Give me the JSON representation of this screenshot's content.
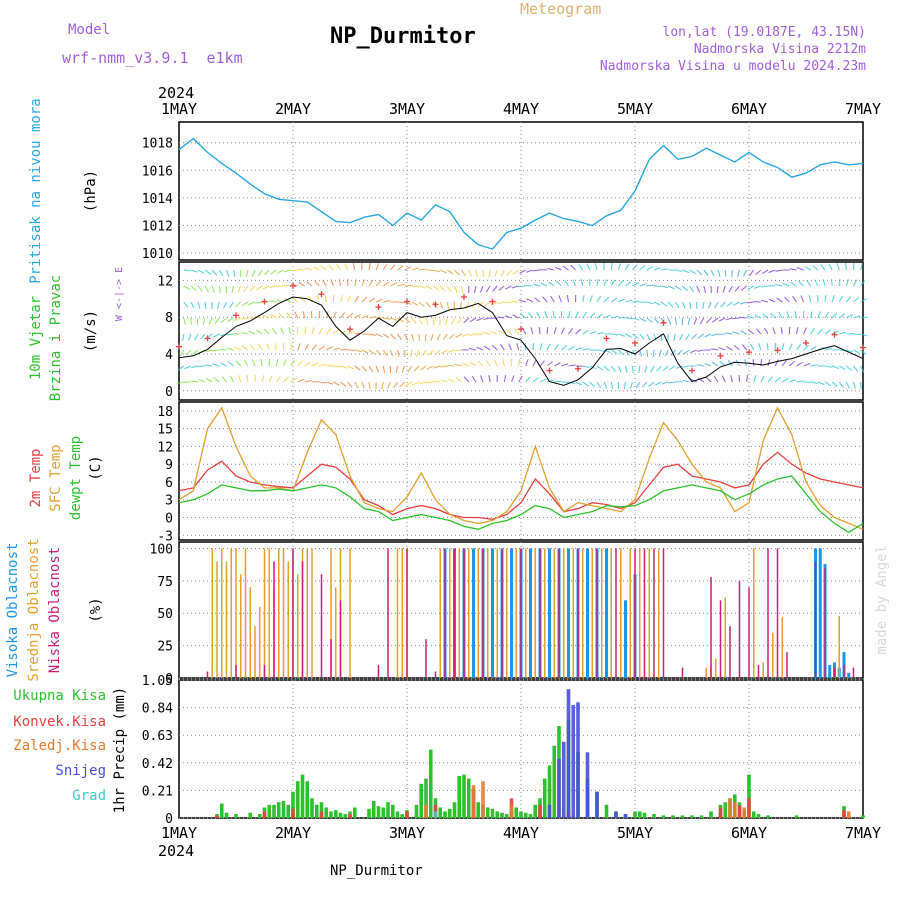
{
  "header": {
    "model_label": "Model",
    "model_value": "wrf-nmm_v3.9.1  e1km",
    "station": "NP_Durmitor",
    "title": "Meteogram",
    "lonlat": "lon,lat (19.0187E, 43.15N)",
    "elevation": "Nadmorska Visina 2212m",
    "model_elevation": "Nadmorska Visina u modelu 2024.23m",
    "credit": "made by Angel",
    "footer_station": "NP_Durmitor"
  },
  "colors": {
    "pressure": "#2aa6e0",
    "temp2m": "#e84040",
    "sfc_temp": "#e0a030",
    "dewpoint": "#2ec02e",
    "total_precip": "#2ec02e",
    "convective": "#e84040",
    "grid_precip": "#e87a30",
    "snow": "#4b4bdc",
    "graupel": "#40c8c8",
    "high_cloud": "#1e96e8",
    "mid_cloud": "#e0a030",
    "low_cloud": "#c8207a",
    "accent_purple": "#a060d8"
  },
  "chart_data": [
    {
      "type": "line",
      "panel": "pressure",
      "ylabel_outer": "Pritisak na nivou mora",
      "ylabel_inner": "(hPa)",
      "x_labels": [
        "1MAY",
        "2MAY",
        "3MAY",
        "4MAY",
        "5MAY",
        "6MAY",
        "7MAY"
      ],
      "x_year": "2024",
      "ylim": [
        1009.5,
        1019.5
      ],
      "yticks": [
        "1010",
        "1012",
        "1014",
        "1016",
        "1018"
      ],
      "x": [
        0,
        3,
        6,
        9,
        12,
        15,
        18,
        21,
        24,
        27,
        30,
        33,
        36,
        39,
        42,
        45,
        48,
        51,
        54,
        57,
        60,
        63,
        66,
        69,
        72,
        75,
        78,
        81,
        84,
        87,
        90,
        93,
        96,
        99,
        102,
        105,
        108,
        111,
        114,
        117,
        120,
        123,
        126,
        129,
        132,
        135,
        138,
        141,
        144
      ],
      "values": [
        1017.5,
        1018.3,
        1017.3,
        1016.5,
        1015.8,
        1015.0,
        1014.3,
        1013.9,
        1013.8,
        1013.7,
        1013.0,
        1012.3,
        1012.2,
        1012.6,
        1012.8,
        1012.0,
        1012.9,
        1012.4,
        1013.5,
        1013.0,
        1011.5,
        1010.6,
        1010.3,
        1011.5,
        1011.8,
        1012.4,
        1012.9,
        1012.5,
        1012.3,
        1012.0,
        1012.7,
        1013.1,
        1014.5,
        1016.8,
        1017.8,
        1016.8,
        1017.0,
        1017.6,
        1017.1,
        1016.6,
        1017.3,
        1016.6,
        1016.2,
        1015.5,
        1015.8,
        1016.4,
        1016.6,
        1016.4,
        1016.5
      ]
    },
    {
      "type": "line",
      "panel": "wind",
      "ylabel_outer_1": "10m Vjetar",
      "ylabel_outer_2": "Brzina i Pravac",
      "ylabel_inner": "(m/s)",
      "compass": "W <-|-> E",
      "ylim": [
        -1,
        14
      ],
      "yticks": [
        "0",
        "4",
        "8",
        "12"
      ],
      "x": [
        0,
        3,
        6,
        9,
        12,
        15,
        18,
        21,
        24,
        27,
        30,
        33,
        36,
        39,
        42,
        45,
        48,
        51,
        54,
        57,
        60,
        63,
        66,
        69,
        72,
        75,
        78,
        81,
        84,
        87,
        90,
        93,
        96,
        99,
        102,
        105,
        108,
        111,
        114,
        117,
        120,
        123,
        126,
        129,
        132,
        135,
        138,
        141,
        144
      ],
      "values": [
        3.6,
        3.8,
        4.5,
        5.8,
        7.0,
        7.6,
        8.5,
        9.5,
        10.2,
        10.0,
        9.3,
        7.0,
        5.5,
        6.5,
        7.9,
        7.0,
        8.5,
        8.0,
        8.2,
        8.8,
        9.0,
        9.5,
        8.5,
        6.0,
        5.5,
        3.5,
        1.0,
        0.6,
        1.2,
        2.5,
        4.5,
        4.6,
        4.0,
        5.2,
        6.2,
        3.0,
        1.0,
        1.5,
        2.6,
        3.1,
        3.0,
        2.8,
        3.2,
        3.5,
        4.0,
        4.5,
        4.9,
        4.2,
        3.5
      ]
    },
    {
      "type": "line",
      "panel": "temperature",
      "ylabel_outer_1": "2m Temp",
      "ylabel_outer_2": "SFC Temp",
      "ylabel_outer_3": "dewpt Temp",
      "ylabel_inner": "(C)",
      "ylim": [
        -3.8,
        19.5
      ],
      "yticks": [
        "-3",
        "0",
        "3",
        "6",
        "9",
        "12",
        "15",
        "18"
      ],
      "x": [
        0,
        3,
        6,
        9,
        12,
        15,
        18,
        21,
        24,
        27,
        30,
        33,
        36,
        39,
        42,
        45,
        48,
        51,
        54,
        57,
        60,
        63,
        66,
        69,
        72,
        75,
        78,
        81,
        84,
        87,
        90,
        93,
        96,
        99,
        102,
        105,
        108,
        111,
        114,
        117,
        120,
        123,
        126,
        129,
        132,
        135,
        138,
        141,
        144
      ],
      "series": [
        {
          "name": "2m Temp",
          "values": [
            4.5,
            5.0,
            8.0,
            9.5,
            7.0,
            6.0,
            5.5,
            5.2,
            5.0,
            7.0,
            9.0,
            8.5,
            6.5,
            3.0,
            2.0,
            0.5,
            1.5,
            2.0,
            1.5,
            0.5,
            0.0,
            0.0,
            -0.3,
            0.5,
            2.5,
            6.5,
            4.0,
            1.0,
            1.5,
            2.5,
            2.2,
            1.5,
            2.5,
            5.5,
            8.5,
            9.0,
            7.0,
            6.5,
            6.0,
            5.0,
            5.5,
            9.0,
            11.0,
            9.0,
            7.5,
            6.5,
            6.0,
            5.5,
            5.0
          ]
        },
        {
          "name": "SFC Temp",
          "values": [
            3.0,
            4.5,
            15.0,
            18.5,
            12.0,
            7.0,
            5.0,
            5.0,
            4.5,
            11.0,
            16.5,
            14.0,
            7.0,
            2.5,
            1.5,
            1.0,
            3.5,
            7.5,
            3.0,
            0.5,
            -0.5,
            -1.0,
            -0.5,
            1.0,
            4.5,
            12.0,
            5.0,
            1.0,
            2.5,
            2.0,
            1.5,
            1.0,
            3.0,
            10.0,
            16.0,
            13.0,
            9.0,
            6.0,
            5.0,
            1.0,
            2.5,
            13.0,
            18.5,
            14.0,
            6.0,
            2.0,
            0.0,
            -1.0,
            -2.0
          ]
        },
        {
          "name": "dewpt Temp",
          "values": [
            2.5,
            3.0,
            4.0,
            5.5,
            5.0,
            4.5,
            4.5,
            4.8,
            4.5,
            5.0,
            5.5,
            5.0,
            3.5,
            1.5,
            1.0,
            -0.5,
            0.0,
            0.5,
            0.0,
            -0.5,
            -1.5,
            -2.0,
            -1.0,
            -0.5,
            0.5,
            2.0,
            1.5,
            0.0,
            0.5,
            1.0,
            2.0,
            1.8,
            2.0,
            3.0,
            4.5,
            5.0,
            5.5,
            5.0,
            4.5,
            3.0,
            4.0,
            5.5,
            6.5,
            7.0,
            4.0,
            1.0,
            -1.0,
            -2.5,
            -1.0
          ]
        }
      ]
    },
    {
      "type": "bar",
      "panel": "clouds",
      "ylabel_outer_1": "Visoka Oblacnost",
      "ylabel_outer_2": "Srednja Oblacnost",
      "ylabel_outer_3": "Niska Oblacnost",
      "ylabel_inner": "(%)",
      "ylim": [
        0,
        105
      ],
      "yticks": [
        "0",
        "25",
        "50",
        "75",
        "100"
      ],
      "series": [
        {
          "name": "Visoka Oblacnost",
          "x": [
            56,
            58,
            60,
            62,
            64,
            66,
            68,
            70,
            72,
            74,
            76,
            78,
            80,
            82,
            84,
            86,
            88,
            90,
            94,
            96,
            134,
            135,
            136,
            137,
            138,
            139,
            140,
            141
          ],
          "values": [
            100,
            100,
            100,
            100,
            100,
            100,
            100,
            100,
            100,
            100,
            100,
            100,
            100,
            100,
            100,
            100,
            100,
            100,
            60,
            80,
            100,
            100,
            88,
            10,
            12,
            8,
            20,
            4
          ]
        },
        {
          "name": "Srednja Oblacnost",
          "x": [
            7,
            8,
            9,
            10,
            11,
            12,
            13,
            14,
            15,
            16,
            17,
            18,
            19,
            20,
            21,
            22,
            23,
            24,
            25,
            26,
            27,
            28,
            32,
            33,
            34,
            36,
            46,
            47,
            48,
            55,
            57,
            59,
            61,
            63,
            65,
            67,
            69,
            71,
            73,
            75,
            77,
            79,
            81,
            83,
            85,
            87,
            89,
            91,
            93,
            95,
            97,
            99,
            101,
            111,
            112,
            113,
            115,
            121,
            123,
            125,
            127,
            139
          ],
          "values": [
            100,
            90,
            100,
            90,
            100,
            100,
            80,
            100,
            70,
            40,
            55,
            100,
            100,
            70,
            100,
            100,
            90,
            100,
            80,
            100,
            100,
            100,
            100,
            70,
            100,
            100,
            100,
            100,
            100,
            100,
            100,
            100,
            100,
            100,
            100,
            100,
            100,
            100,
            100,
            100,
            100,
            100,
            100,
            100,
            100,
            100,
            100,
            100,
            100,
            100,
            100,
            100,
            100,
            8,
            10,
            15,
            62,
            100,
            12,
            35,
            47,
            48
          ]
        },
        {
          "name": "Niska Oblacnost",
          "x": [
            6,
            12,
            18,
            20,
            24,
            26,
            30,
            32,
            34,
            42,
            44,
            48,
            52,
            54,
            56,
            58,
            60,
            64,
            68,
            72,
            76,
            80,
            84,
            88,
            92,
            96,
            98,
            100,
            102,
            106,
            112,
            114,
            116,
            118,
            120,
            122,
            124,
            126,
            128,
            134,
            136,
            138,
            140,
            142
          ],
          "values": [
            5,
            10,
            10,
            90,
            100,
            90,
            80,
            30,
            60,
            10,
            100,
            100,
            30,
            5,
            100,
            100,
            100,
            100,
            100,
            100,
            100,
            100,
            100,
            100,
            100,
            100,
            100,
            100,
            100,
            8,
            78,
            60,
            40,
            75,
            70,
            10,
            100,
            100,
            20,
            90,
            85,
            8,
            10,
            8
          ]
        }
      ]
    },
    {
      "type": "bar",
      "panel": "precip",
      "ylabel_inner": "1hr Precip (mm)",
      "legend": [
        "Ukupna Kisa",
        "Konvek.Kisa",
        "Zaledj.Kisa",
        "Snijeg",
        "Grad"
      ],
      "ylim": [
        0,
        1.05
      ],
      "yticks": [
        "0",
        "0.21",
        "0.42",
        "0.63",
        "0.84",
        "1.05"
      ],
      "bottom_year": "2024",
      "series": [
        {
          "name": "Ukupna Kisa",
          "x": [
            8,
            9,
            10,
            12,
            15,
            17,
            18,
            19,
            20,
            21,
            22,
            23,
            24,
            25,
            26,
            27,
            28,
            29,
            30,
            31,
            32,
            33,
            34,
            35,
            36,
            37,
            40,
            41,
            42,
            43,
            44,
            45,
            46,
            47,
            48,
            50,
            51,
            52,
            53,
            54,
            55,
            56,
            57,
            58,
            59,
            60,
            61,
            62,
            63,
            64,
            65,
            66,
            67,
            68,
            69,
            70,
            71,
            72,
            73,
            74,
            75,
            76,
            77,
            78,
            79,
            80,
            82,
            84,
            86,
            88,
            90,
            92,
            94,
            96,
            97,
            98,
            100,
            102,
            104,
            106,
            108,
            110,
            112,
            114,
            115,
            116,
            117,
            118,
            119,
            120,
            121,
            122,
            124,
            130,
            140,
            144
          ],
          "values": [
            0.03,
            0.11,
            0.04,
            0.03,
            0.04,
            0.03,
            0.08,
            0.1,
            0.1,
            0.12,
            0.13,
            0.1,
            0.2,
            0.28,
            0.33,
            0.28,
            0.15,
            0.1,
            0.12,
            0.08,
            0.05,
            0.06,
            0.04,
            0.03,
            0.05,
            0.08,
            0.07,
            0.13,
            0.09,
            0.08,
            0.12,
            0.1,
            0.05,
            0.03,
            0.06,
            0.1,
            0.26,
            0.3,
            0.52,
            0.15,
            0.08,
            0.05,
            0.07,
            0.12,
            0.32,
            0.33,
            0.3,
            0.22,
            0.12,
            0.1,
            0.08,
            0.07,
            0.05,
            0.04,
            0.03,
            0.05,
            0.08,
            0.05,
            0.04,
            0.03,
            0.1,
            0.15,
            0.3,
            0.4,
            0.55,
            0.7,
            0.75,
            0.5,
            0.3,
            0.2,
            0.1,
            0.05,
            0.03,
            0.05,
            0.05,
            0.04,
            0.03,
            0.02,
            0.02,
            0.02,
            0.02,
            0.02,
            0.05,
            0.1,
            0.12,
            0.15,
            0.18,
            0.12,
            0.06,
            0.33,
            0.05,
            0.03,
            0.02,
            0.02,
            0.09,
            0.02
          ]
        },
        {
          "name": "Konvek.Kisa",
          "x": [
            8,
            18,
            24,
            30,
            36,
            48,
            54,
            62,
            70,
            76,
            82,
            114,
            118,
            120,
            140
          ],
          "values": [
            0.02,
            0.05,
            0.07,
            0.05,
            0.03,
            0.05,
            0.1,
            0.2,
            0.15,
            0.1,
            0.05,
            0.08,
            0.1,
            0.15,
            0.06
          ]
        },
        {
          "name": "Zaledj.Kisa",
          "x": [
            52,
            62,
            64,
            70,
            116,
            117,
            119,
            141
          ],
          "values": [
            0.1,
            0.25,
            0.28,
            0.1,
            0.15,
            0.12,
            0.08,
            0.05
          ]
        },
        {
          "name": "Snijeg",
          "x": [
            78,
            80,
            81,
            82,
            83,
            84,
            86,
            88,
            92,
            94
          ],
          "values": [
            0.1,
            0.45,
            0.58,
            0.98,
            0.86,
            0.88,
            0.5,
            0.2,
            0.05,
            0.03
          ]
        },
        {
          "name": "Grad",
          "x": [
            54
          ],
          "values": [
            0.05
          ]
        }
      ]
    }
  ]
}
